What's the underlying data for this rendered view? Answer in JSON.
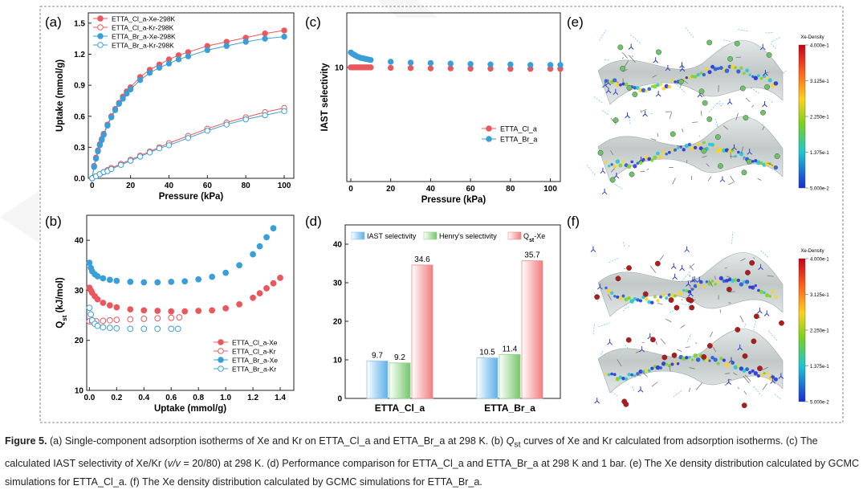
{
  "figure": {
    "panels": {
      "a": {
        "label": "(a)"
      },
      "b": {
        "label": "(b)"
      },
      "c": {
        "label": "(c)"
      },
      "d": {
        "label": "(d)"
      },
      "e": {
        "label": "(e)"
      },
      "f": {
        "label": "(f)"
      }
    },
    "colorbar_e": {
      "title": "Xe-Density",
      "ticks": [
        "4.000e-1",
        "3.125e-1",
        "2.250e-1",
        "1.375e-1",
        "5.000e-2"
      ]
    },
    "colorbar_f": {
      "title": "Xe-Density",
      "ticks": [
        "4.000e-1",
        "3.125e-1",
        "2.250e-1",
        "1.375e-1",
        "5.000e-2"
      ]
    },
    "colors": {
      "red": "#e8585c",
      "blue": "#3a9fd8",
      "green": "#6cc36a",
      "darkred": "#b31b1b"
    }
  },
  "chart_data": [
    {
      "panel": "a",
      "type": "line",
      "xlabel": "Pressure (kPa)",
      "ylabel": "Uptake (mmol/g)",
      "xlim": [
        -2,
        105
      ],
      "ylim": [
        0,
        1.6
      ],
      "xticks": [
        "0",
        "20",
        "40",
        "60",
        "80",
        "100"
      ],
      "yticks": [
        "0.0",
        "0.3",
        "0.6",
        "0.9",
        "1.2",
        "1.5"
      ],
      "legend_position": "top-left",
      "series": [
        {
          "name": "ETTA_Cl_a-Xe-298K",
          "color": "#e8585c",
          "filled": true,
          "x": [
            0,
            1,
            2,
            3,
            4,
            5,
            6,
            8,
            10,
            12,
            14,
            16,
            18,
            20,
            25,
            30,
            35,
            40,
            45,
            50,
            60,
            70,
            80,
            90,
            100
          ],
          "y": [
            0,
            0.12,
            0.2,
            0.27,
            0.33,
            0.38,
            0.43,
            0.52,
            0.6,
            0.67,
            0.73,
            0.79,
            0.84,
            0.88,
            0.98,
            1.05,
            1.1,
            1.15,
            1.19,
            1.22,
            1.28,
            1.32,
            1.36,
            1.4,
            1.43
          ]
        },
        {
          "name": "ETTA_Cl_a-Kr-298K",
          "color": "#e8585c",
          "filled": false,
          "x": [
            0,
            2,
            4,
            6,
            8,
            10,
            15,
            20,
            25,
            30,
            35,
            40,
            50,
            60,
            70,
            80,
            90,
            100
          ],
          "y": [
            0,
            0.02,
            0.04,
            0.06,
            0.08,
            0.1,
            0.14,
            0.18,
            0.22,
            0.26,
            0.3,
            0.34,
            0.41,
            0.48,
            0.54,
            0.59,
            0.64,
            0.68
          ]
        },
        {
          "name": "ETTA_Br_a-Xe-298K",
          "color": "#3a9fd8",
          "filled": true,
          "x": [
            0,
            1,
            2,
            3,
            4,
            5,
            6,
            8,
            10,
            12,
            14,
            16,
            18,
            20,
            25,
            30,
            35,
            40,
            45,
            50,
            60,
            70,
            80,
            90,
            100
          ],
          "y": [
            0,
            0.11,
            0.19,
            0.26,
            0.32,
            0.37,
            0.42,
            0.51,
            0.59,
            0.66,
            0.72,
            0.77,
            0.82,
            0.86,
            0.95,
            1.02,
            1.07,
            1.11,
            1.15,
            1.18,
            1.24,
            1.28,
            1.32,
            1.35,
            1.37
          ]
        },
        {
          "name": "ETTA_Br_a-Kr-298K",
          "color": "#3a9fd8",
          "filled": false,
          "x": [
            0,
            2,
            4,
            6,
            8,
            10,
            15,
            20,
            25,
            30,
            35,
            40,
            50,
            60,
            70,
            80,
            90,
            100
          ],
          "y": [
            0,
            0.02,
            0.04,
            0.06,
            0.07,
            0.09,
            0.13,
            0.17,
            0.21,
            0.25,
            0.29,
            0.32,
            0.39,
            0.46,
            0.52,
            0.57,
            0.61,
            0.65
          ]
        }
      ]
    },
    {
      "panel": "b",
      "type": "scatter",
      "xlabel": "Uptake (mmol/g)",
      "ylabel": "Qst (kJ/mol)",
      "xlim": [
        -0.02,
        1.5
      ],
      "ylim": [
        10,
        45
      ],
      "xticks": [
        "0.0",
        "0.2",
        "0.4",
        "0.6",
        "0.8",
        "1.0",
        "1.2",
        "1.4"
      ],
      "yticks": [
        "10",
        "20",
        "30",
        "40"
      ],
      "legend_position": "bottom-right",
      "series": [
        {
          "name": "ETTA_Cl_a-Xe",
          "color": "#e8585c",
          "filled": true,
          "x": [
            0.0,
            0.01,
            0.02,
            0.04,
            0.06,
            0.1,
            0.15,
            0.2,
            0.3,
            0.4,
            0.5,
            0.6,
            0.7,
            0.8,
            0.9,
            1.0,
            1.1,
            1.2,
            1.25,
            1.3,
            1.35,
            1.4
          ],
          "y": [
            30.5,
            30,
            29.5,
            28.8,
            28.2,
            27.5,
            27,
            26.6,
            26.2,
            26,
            25.9,
            25.8,
            25.8,
            25.9,
            26,
            26.4,
            27.2,
            28.5,
            29.4,
            30.4,
            31.4,
            32.5
          ]
        },
        {
          "name": "ETTA_Cl_a-Kr",
          "color": "#e8585c",
          "filled": false,
          "x": [
            0.0,
            0.02,
            0.05,
            0.1,
            0.15,
            0.2,
            0.3,
            0.4,
            0.5,
            0.6,
            0.66
          ],
          "y": [
            23.8,
            23.7,
            23.8,
            23.9,
            24,
            24.1,
            24.2,
            24.3,
            24.4,
            24.5,
            24.6
          ]
        },
        {
          "name": "ETTA_Br_a-Xe",
          "color": "#3a9fd8",
          "filled": true,
          "x": [
            0.0,
            0.01,
            0.02,
            0.04,
            0.06,
            0.1,
            0.15,
            0.2,
            0.3,
            0.4,
            0.5,
            0.6,
            0.7,
            0.8,
            0.9,
            1.0,
            1.1,
            1.2,
            1.25,
            1.3,
            1.35
          ],
          "y": [
            35.5,
            34.5,
            33.8,
            33.2,
            32.8,
            32.4,
            32.1,
            31.9,
            31.7,
            31.6,
            31.6,
            31.7,
            31.8,
            32.2,
            32.7,
            33.5,
            35,
            37.2,
            38.8,
            40.6,
            42.4
          ]
        },
        {
          "name": "ETTA_Br_a-Kr",
          "color": "#3a9fd8",
          "filled": false,
          "x": [
            0.0,
            0.01,
            0.02,
            0.04,
            0.06,
            0.1,
            0.15,
            0.2,
            0.3,
            0.4,
            0.5,
            0.6,
            0.65
          ],
          "y": [
            26.5,
            25.2,
            24,
            23.3,
            22.9,
            22.6,
            22.5,
            22.4,
            22.3,
            22.3,
            22.3,
            22.3,
            22.3
          ]
        }
      ]
    },
    {
      "panel": "c",
      "type": "scatter",
      "xlabel": "Pressure (kPa)",
      "ylabel": "IAST selectivity",
      "yscale": "log",
      "xlim": [
        -2,
        105
      ],
      "ylim": [
        1,
        30
      ],
      "xticks": [
        "0",
        "20",
        "40",
        "60",
        "80",
        "100"
      ],
      "yticks": [
        "10"
      ],
      "legend_position": "bottom-right",
      "series": [
        {
          "name": "ETTA_Cl_a",
          "color": "#e8585c",
          "filled": true,
          "x": [
            0,
            1,
            2,
            3,
            4,
            5,
            6,
            7,
            8,
            9,
            10,
            20,
            30,
            40,
            50,
            60,
            70,
            80,
            90,
            100,
            105
          ],
          "y": [
            10,
            10,
            10,
            10,
            10,
            10,
            10,
            10,
            10,
            10,
            10,
            9.9,
            9.85,
            9.8,
            9.8,
            9.75,
            9.75,
            9.7,
            9.7,
            9.7,
            9.7
          ]
        },
        {
          "name": "ETTA_Br_a",
          "color": "#3a9fd8",
          "filled": true,
          "x": [
            0,
            1,
            2,
            3,
            4,
            5,
            6,
            7,
            8,
            9,
            10,
            20,
            30,
            40,
            50,
            60,
            70,
            80,
            90,
            100,
            105
          ],
          "y": [
            13.5,
            13.1,
            12.8,
            12.5,
            12.3,
            12.1,
            12,
            11.9,
            11.8,
            11.7,
            11.6,
            11.2,
            11,
            10.9,
            10.8,
            10.7,
            10.6,
            10.6,
            10.5,
            10.5,
            10.5
          ]
        }
      ]
    },
    {
      "panel": "d",
      "type": "bar",
      "categories": [
        "ETTA_Cl_a",
        "ETTA_Br_a"
      ],
      "ylim": [
        0,
        45
      ],
      "yticks": [
        "0",
        "10",
        "20",
        "30",
        "40"
      ],
      "legend_position": "top",
      "series": [
        {
          "name": "IAST selectivity",
          "color": "#9fd0f0",
          "values": [
            9.7,
            10.5
          ],
          "labels": [
            "9.7",
            "10.5"
          ]
        },
        {
          "name": "Henry's selectivity",
          "color": "#a6dba0",
          "values": [
            9.2,
            11.4
          ],
          "labels": [
            "9.2",
            "11.4"
          ]
        },
        {
          "name": "Qst-Xe",
          "color": "#f4a3a3",
          "values": [
            34.6,
            35.7
          ],
          "labels": [
            "34.6",
            "35.7"
          ]
        }
      ]
    }
  ],
  "caption": {
    "label": "Figure 5.",
    "part1": " (a) Single-component adsorption isotherms of Xe and Kr on ETTA_Cl_a and ETTA_Br_a at 298 K. (b) ",
    "q_symbol": "Q",
    "q_sub": "st",
    "part2": " curves of Xe and Kr calculated from adsorption isotherms. (c) The calculated IAST selectivity of Xe/Kr (",
    "ratio_italic": "v/v",
    "part3": " = 20/80) at 298 K. (d) Performance comparison for ETTA_Cl_a and ETTA_Br_a at 298 K and 1 bar. (e) The Xe density distribution calculated by GCMC simulations for ETTA_Cl_a. (f) The Xe density distribution calculated by GCMC simulations for ETTA_Br_a."
  }
}
